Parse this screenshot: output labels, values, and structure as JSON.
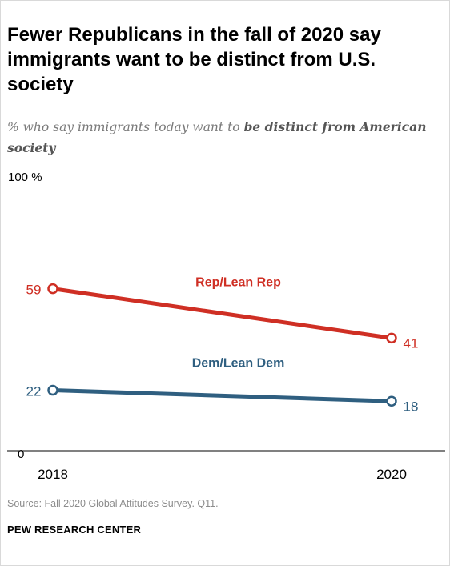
{
  "title": "Fewer Republicans in the fall of 2020 say immigrants want to be distinct from U.S. society",
  "subtitle_prefix": "% who say immigrants today want to ",
  "subtitle_emphasis": "be distinct from American society",
  "source": "Source: Fall 2020 Global Attitudes Survey. Q11.",
  "organization": "PEW RESEARCH CENTER",
  "chart_data": {
    "type": "line",
    "x": [
      "2018",
      "2020"
    ],
    "series": [
      {
        "name": "Rep/Lean Rep",
        "values": [
          59,
          41
        ],
        "color": "#cf2f24"
      },
      {
        "name": "Dem/Lean Dem",
        "values": [
          22,
          18
        ],
        "color": "#2f5f80"
      }
    ],
    "ylim": [
      0,
      100
    ],
    "yticks": [
      "100 %",
      "0"
    ],
    "grid": false,
    "legend": "inline labels"
  }
}
